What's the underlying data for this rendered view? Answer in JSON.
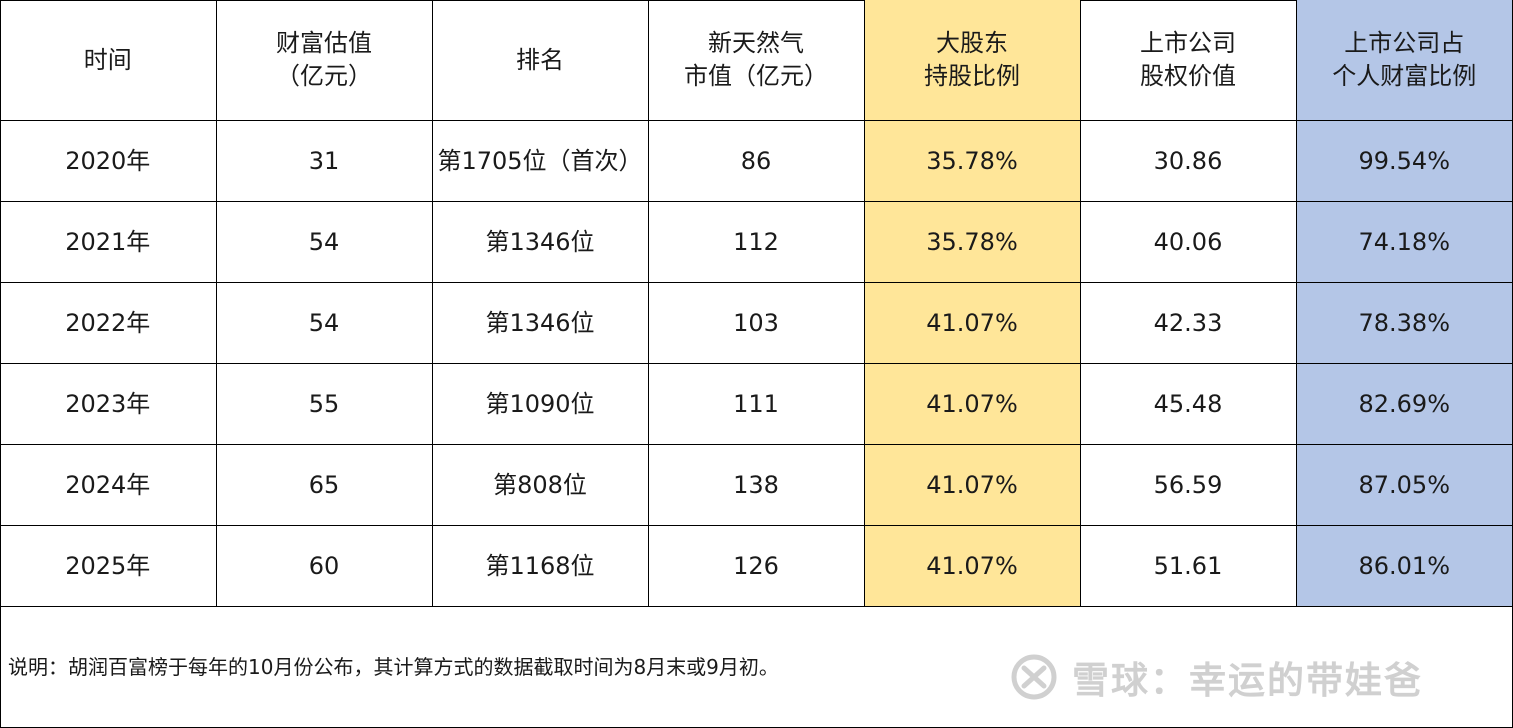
{
  "table": {
    "headers": [
      [
        "时间"
      ],
      [
        "财富估值",
        "（亿元）"
      ],
      [
        "排名"
      ],
      [
        "新天然气",
        "市值（亿元）"
      ],
      [
        "大股东",
        "持股比例"
      ],
      [
        "上市公司",
        "股权价值"
      ],
      [
        "上市公司占",
        "个人财富比例"
      ]
    ],
    "rows": [
      [
        "2020年",
        "31",
        "第1705位（首次）",
        "86",
        "35.78%",
        "30.86",
        "99.54%"
      ],
      [
        "2021年",
        "54",
        "第1346位",
        "112",
        "35.78%",
        "40.06",
        "74.18%"
      ],
      [
        "2022年",
        "54",
        "第1346位",
        "103",
        "41.07%",
        "42.33",
        "78.38%"
      ],
      [
        "2023年",
        "55",
        "第1090位",
        "111",
        "41.07%",
        "45.48",
        "82.69%"
      ],
      [
        "2024年",
        "65",
        "第808位",
        "138",
        "41.07%",
        "56.59",
        "87.05%"
      ],
      [
        "2025年",
        "60",
        "第1168位",
        "126",
        "41.07%",
        "51.61",
        "86.01%"
      ]
    ]
  },
  "note": "说明：胡润百富榜于每年的10月份公布，其计算方式的数据截取时间为8月末或9月初。",
  "watermark": {
    "text": "雪球：幸运的带娃爸",
    "icon": "snowball-logo-icon"
  },
  "colors": {
    "highlight_yellow": "#ffe699",
    "highlight_blue": "#b4c6e7",
    "watermark": "#d0d0d0"
  }
}
